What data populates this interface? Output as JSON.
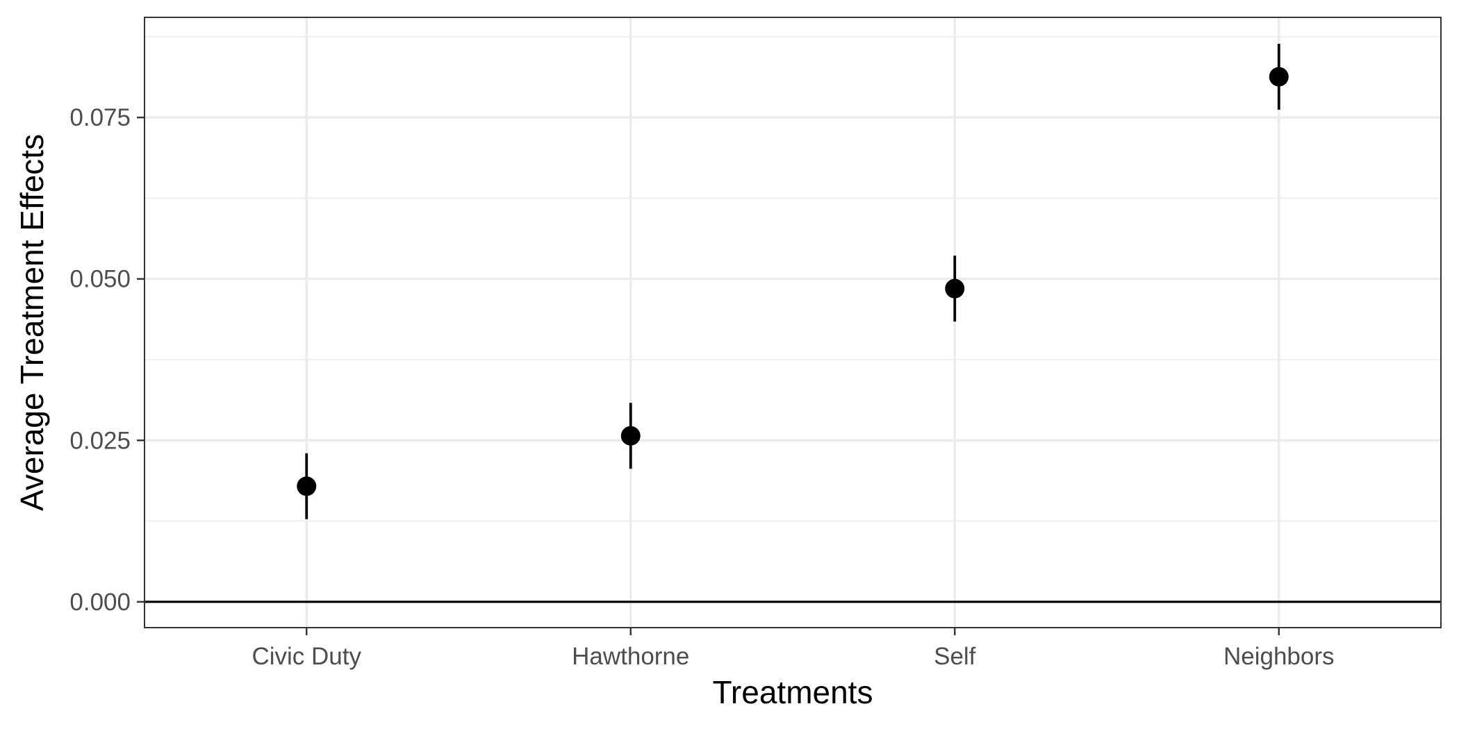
{
  "chart_data": {
    "type": "scatter",
    "title": "",
    "xlabel": "Treatments",
    "ylabel": "Average Treatment Effects",
    "categories": [
      "Civic Duty",
      "Hawthorne",
      "Self",
      "Neighbors"
    ],
    "series": [
      {
        "values": [
          0.0179,
          0.0257,
          0.0485,
          0.0813
        ],
        "ci_lower": [
          0.0128,
          0.0206,
          0.0434,
          0.0762
        ],
        "ci_upper": [
          0.023,
          0.0308,
          0.0536,
          0.0864
        ]
      }
    ],
    "reference_line": 0,
    "ylim": [
      -0.004,
      0.0905
    ],
    "yticks": [
      0.0,
      0.025,
      0.05,
      0.075
    ],
    "ytick_labels": [
      "0.000",
      "0.025",
      "0.050",
      "0.075"
    ],
    "grid": true,
    "legend": "none",
    "colors": {
      "points": "#000000",
      "grid": "#ebebeb",
      "panel_border": "#333333",
      "tick_label": "#4d4d4d"
    }
  }
}
